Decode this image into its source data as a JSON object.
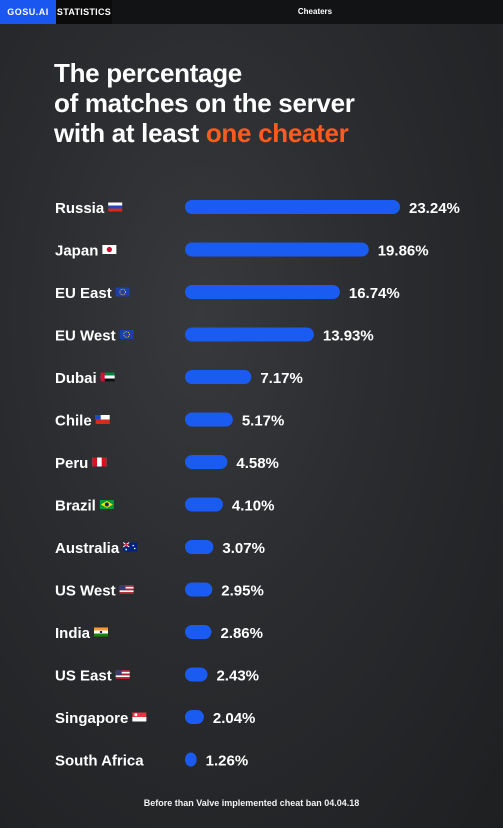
{
  "header": {
    "brand": "GOSU.AI",
    "section": "STATISTICS",
    "page_title": "Cheaters"
  },
  "title": {
    "line1": "The percentage",
    "line2": "of matches on the server",
    "line3_prefix": "with at least ",
    "line3_highlight": "one cheater"
  },
  "footnote": "Before than Valve implemented cheat ban 04.04.18",
  "colors": {
    "bar": "#1a5cf2",
    "highlight": "#ff5a1f",
    "background": "#2b2d30"
  },
  "chart_data": {
    "type": "bar",
    "orientation": "horizontal",
    "unit": "%",
    "categories": [
      "Russia",
      "Japan",
      "EU East",
      "EU West",
      "Dubai",
      "Chile",
      "Peru",
      "Brazil",
      "Australia",
      "US West",
      "India",
      "US East",
      "Singapore",
      "South Africa"
    ],
    "values": [
      23.24,
      19.86,
      16.74,
      13.93,
      7.17,
      5.17,
      4.58,
      4.1,
      3.07,
      2.95,
      2.86,
      2.43,
      2.04,
      1.26
    ],
    "value_labels": [
      "23.24%",
      "19.86%",
      "16.74%",
      "13.93%",
      "7.17%",
      "5.17%",
      "4.58%",
      "4.10%",
      "3.07%",
      "2.95%",
      "2.86%",
      "2.43%",
      "2.04%",
      "1.26%"
    ],
    "flag_icons": [
      "russia-flag-icon",
      "japan-flag-icon",
      "eu-flag-icon",
      "eu-flag-icon",
      "uae-flag-icon",
      "chile-flag-icon",
      "peru-flag-icon",
      "brazil-flag-icon",
      "australia-flag-icon",
      "usa-flag-icon",
      "india-flag-icon",
      "usa-flag-icon",
      "singapore-flag-icon",
      ""
    ],
    "xlim": [
      0,
      23.24
    ],
    "grid": false,
    "legend": "none"
  }
}
